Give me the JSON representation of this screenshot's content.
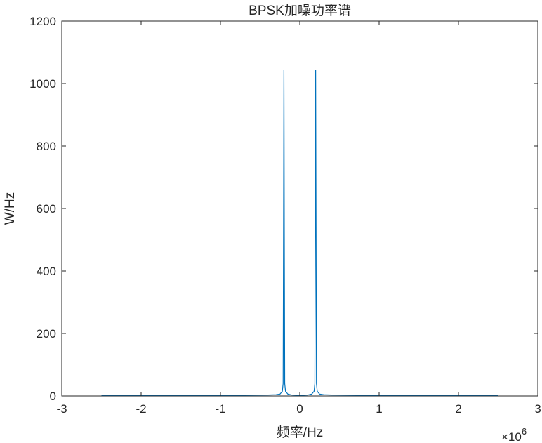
{
  "chart_data": {
    "type": "line",
    "title": "BPSK加噪功率谱",
    "xlabel": "频率/Hz",
    "ylabel": "W/Hz",
    "x_multiplier_label": {
      "prefix": "×10",
      "exponent": "6"
    },
    "xlim": [
      -3,
      3
    ],
    "ylim": [
      0,
      1200
    ],
    "x_unit_scale": 1000000,
    "x_ticks": [
      "-3",
      "-2",
      "-1",
      "0",
      "1",
      "2",
      "3"
    ],
    "y_ticks": [
      "0",
      "200",
      "400",
      "600",
      "800",
      "1000",
      "1200"
    ],
    "grid": false,
    "series": [
      {
        "color": "#0072BD",
        "x": [
          -2.5,
          -1.0,
          -0.4,
          -0.3,
          -0.25,
          -0.22,
          -0.21,
          -0.205,
          -0.2,
          -0.195,
          -0.19,
          -0.18,
          -0.15,
          -0.1,
          0.0,
          0.1,
          0.15,
          0.18,
          0.19,
          0.195,
          0.2,
          0.205,
          0.21,
          0.22,
          0.25,
          0.3,
          0.4,
          1.0,
          2.5
        ],
        "y": [
          2,
          2,
          3,
          4,
          6,
          15,
          40,
          520,
          1043,
          520,
          40,
          15,
          6,
          3,
          2,
          3,
          6,
          15,
          40,
          540,
          1043,
          540,
          40,
          15,
          6,
          4,
          3,
          2,
          2
        ]
      }
    ]
  }
}
